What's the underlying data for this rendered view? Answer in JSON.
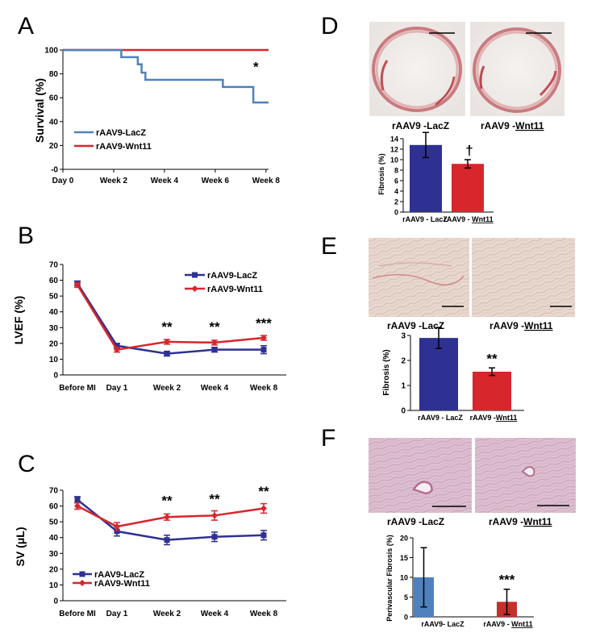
{
  "panel_labels": {
    "A": "A",
    "B": "B",
    "C": "C",
    "D": "D",
    "E": "E",
    "F": "F"
  },
  "colors": {
    "lacz": "#2e3192",
    "wnt11": "#d7262c",
    "lacz_km": "#4f81bd",
    "lacz_f": "#4f81bd",
    "wnt11_f": "#c5302a"
  },
  "chart_data": [
    {
      "id": "A",
      "type": "line",
      "step": true,
      "ylabel": "Survival (%)",
      "ylim": [
        0,
        100
      ],
      "yticks": [
        0,
        20,
        40,
        60,
        80,
        100
      ],
      "ytick_labels": [
        "-0",
        "20",
        "40",
        "60",
        "80",
        "100"
      ],
      "xticks": [
        0,
        2,
        4,
        6,
        8
      ],
      "xtick_labels": [
        "Day 0",
        "Week 2",
        "Week 4",
        "Week 6",
        "Week 8"
      ],
      "legend": "bottom-left",
      "series": [
        {
          "name": "rAAV9-LacZ",
          "color": "#4f81bd",
          "x": [
            0,
            2.3,
            2.3,
            2.95,
            2.95,
            3.1,
            3.1,
            3.25,
            3.25,
            6.3,
            6.3,
            7.5,
            7.5,
            8.1
          ],
          "y": [
            100,
            100,
            94,
            94,
            88,
            88,
            81,
            81,
            75,
            75,
            69,
            69,
            56,
            56
          ]
        },
        {
          "name": "rAAV9-Wnt11",
          "color": "#d7262c",
          "x": [
            0,
            8.1
          ],
          "y": [
            100,
            100
          ]
        }
      ],
      "annotations": [
        {
          "x": 7.6,
          "y": 82,
          "text": "*"
        }
      ]
    },
    {
      "id": "B",
      "type": "line",
      "ylabel": "LVEF (%)",
      "ylim": [
        0,
        70
      ],
      "yticks": [
        0,
        10,
        20,
        30,
        40,
        50,
        60,
        70
      ],
      "categories": [
        "Before MI",
        "Day 1",
        "Week 2",
        "Week 4",
        "Week 8"
      ],
      "legend": "top-right",
      "series": [
        {
          "name": "rAAV9-LacZ",
          "color": "#2e3192",
          "marker": "square",
          "values": [
            58,
            18.5,
            13.5,
            16,
            16
          ],
          "errors": [
            1.5,
            1.5,
            1.5,
            1.5,
            2.5
          ]
        },
        {
          "name": "rAAV9-Wnt11",
          "color": "#d7262c",
          "marker": "diamond",
          "values": [
            57,
            16,
            21,
            20.5,
            23.5
          ],
          "errors": [
            1.5,
            1.5,
            1.5,
            1.5,
            1.5
          ]
        }
      ],
      "annotations": [
        {
          "category": 2,
          "y": 27.5,
          "text": "**"
        },
        {
          "category": 3,
          "y": 27.5,
          "text": "**"
        },
        {
          "category": 4,
          "y": 30,
          "text": "***"
        }
      ]
    },
    {
      "id": "C",
      "type": "line",
      "ylabel": "SV (μL)",
      "ylim": [
        0,
        70
      ],
      "yticks": [
        0,
        10,
        20,
        30,
        40,
        50,
        60,
        70
      ],
      "categories": [
        "Before MI",
        "Day 1",
        "Week 2",
        "Week 4",
        "Week 8"
      ],
      "legend": "bottom-left",
      "series": [
        {
          "name": "rAAV9-LacZ",
          "color": "#2e3192",
          "marker": "square",
          "values": [
            64,
            44,
            38.5,
            40.5,
            41.5
          ],
          "errors": [
            2,
            3,
            3,
            3,
            3
          ]
        },
        {
          "name": "rAAV9-Wnt11",
          "color": "#d7262c",
          "marker": "diamond",
          "values": [
            60,
            47,
            53,
            54,
            58.5
          ],
          "errors": [
            2,
            2.5,
            2,
            3,
            3
          ]
        }
      ],
      "annotations": [
        {
          "category": 2,
          "y": 60.5,
          "text": "**"
        },
        {
          "category": 3,
          "y": 61.5,
          "text": "**"
        },
        {
          "category": 4,
          "y": 66.5,
          "text": "**"
        }
      ]
    },
    {
      "id": "D",
      "type": "bar",
      "ylabel": "Fibrosis (%)",
      "ylim": [
        0,
        14
      ],
      "yticks": [
        0,
        2,
        4,
        6,
        8,
        10,
        12,
        14
      ],
      "categories": [
        "rAAV9 - LacZ",
        "rAAV9 - Wnt11"
      ],
      "values": [
        12.8,
        9.2
      ],
      "errors": [
        2.4,
        0.8
      ],
      "colors": [
        "#2e3192",
        "#d7262c"
      ],
      "annotations": [
        {
          "bar": 1,
          "text": "†"
        }
      ]
    },
    {
      "id": "E",
      "type": "bar",
      "ylabel": "Fibrosis (%)",
      "ylim": [
        0,
        3
      ],
      "yticks": [
        0,
        1,
        2,
        3
      ],
      "categories": [
        "rAAV9 - LacZ",
        "rAAV9 -Wnt11"
      ],
      "values": [
        2.9,
        1.55
      ],
      "errors": [
        0.42,
        0.15
      ],
      "colors": [
        "#2e3192",
        "#d7262c"
      ],
      "annotations": [
        {
          "bar": 1,
          "text": "**"
        }
      ]
    },
    {
      "id": "F",
      "type": "bar",
      "ylabel": "Perivascular Fibrosis (%)",
      "ylim": [
        0,
        20
      ],
      "yticks": [
        0,
        5,
        10,
        15,
        20
      ],
      "categories": [
        "rAAV9- LacZ",
        "rAAV9 - Wnt11"
      ],
      "values": [
        10,
        3.8
      ],
      "errors": [
        7.5,
        3.2
      ],
      "colors": [
        "#4f81bd",
        "#c5302a"
      ],
      "annotations": [
        {
          "bar": 1,
          "text": "***"
        }
      ]
    }
  ],
  "images": {
    "D": {
      "lacz_caption_prefix": "rAAV9 -",
      "lacz_caption_name": "LacZ",
      "wnt11_caption_prefix": "rAAV9 -",
      "wnt11_caption_name": "Wnt11"
    },
    "E": {
      "lacz_caption_prefix": "rAAV9 -",
      "lacz_caption_name": "LacZ",
      "wnt11_caption_prefix": "rAAV9 -",
      "wnt11_caption_name": "Wnt11"
    },
    "F": {
      "lacz_caption_prefix": "rAAV9 -",
      "lacz_caption_name": "LacZ",
      "wnt11_caption_prefix": "rAAV9 -",
      "wnt11_caption_name": "Wnt11"
    }
  }
}
